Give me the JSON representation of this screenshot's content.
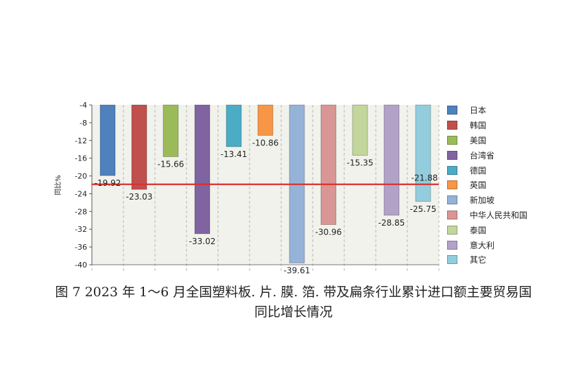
{
  "chart_data": {
    "type": "bar",
    "ylabel": "同比%",
    "ylim": [
      -40,
      -4
    ],
    "yticks": [
      -4,
      -8,
      -12,
      -16,
      -20,
      -24,
      -28,
      -32,
      -36,
      -40
    ],
    "grid": true,
    "legend_position": "right",
    "categories": [
      "日本",
      "韩国",
      "美国",
      "台湾省",
      "德国",
      "英国",
      "新加坡",
      "中华人民共和国",
      "泰国",
      "意大利",
      "其它"
    ],
    "values": [
      -19.92,
      -23.03,
      -15.66,
      -33.02,
      -13.41,
      -10.86,
      -39.61,
      -30.96,
      -15.35,
      -28.85,
      -25.75
    ],
    "value_labels": [
      "-19.92",
      "-23.03",
      "-15.66",
      "-33.02",
      "-13.41",
      "-10.86",
      "-39.61",
      "-30.96",
      "-15.35",
      "-28.85",
      "-25.75"
    ],
    "colors": [
      "#4f81bd",
      "#c0504d",
      "#9bbb59",
      "#8064a2",
      "#4bacc6",
      "#f79646",
      "#95b3d7",
      "#d99694",
      "#c3d69b",
      "#b2a2c7",
      "#93cddd"
    ],
    "reference_line": {
      "value": -21.88,
      "label": "-21.88",
      "color": "#d9302c"
    }
  },
  "caption": {
    "line1": "图 7   2023 年 1～6 月全国塑料板. 片. 膜. 箔. 带及扁条行业累计进口额主要贸易国",
    "line2": "同比增长情况"
  }
}
